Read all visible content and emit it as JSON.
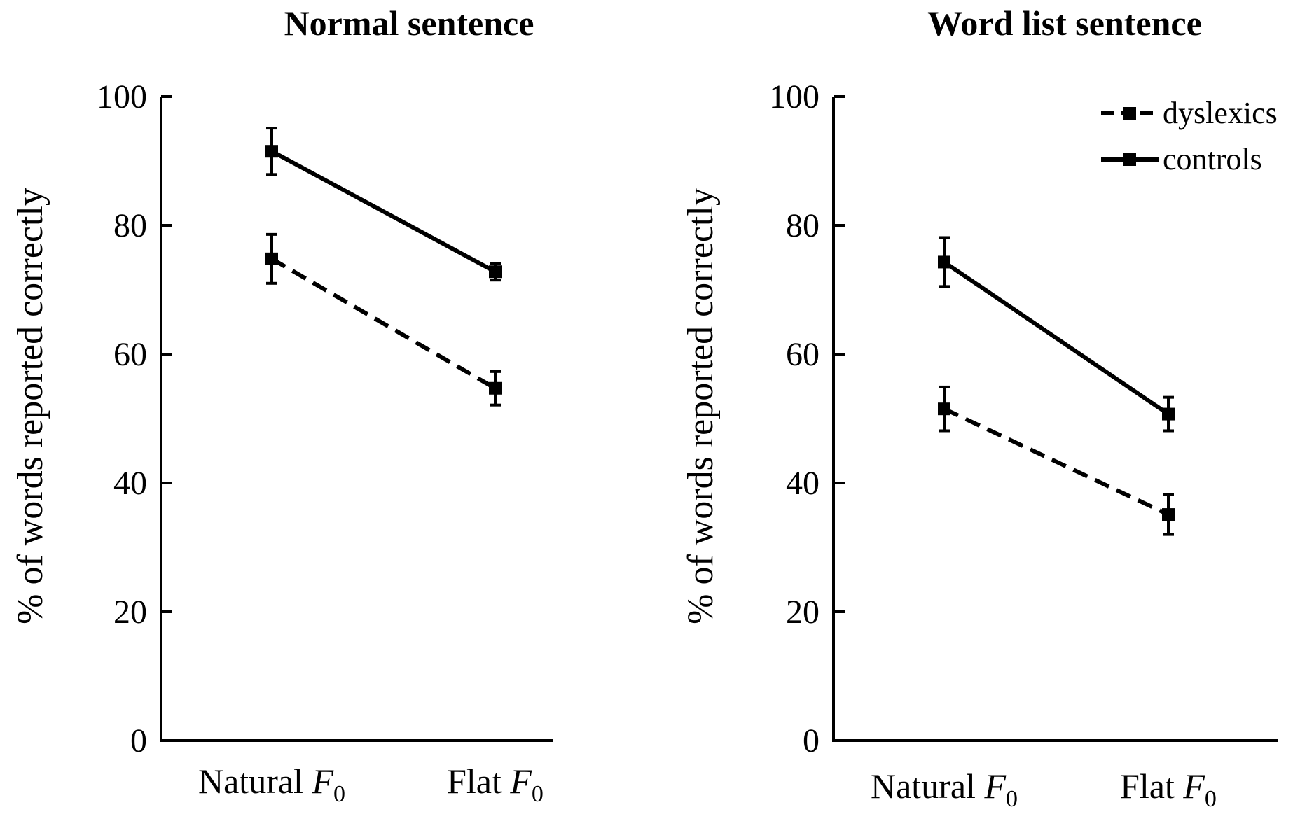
{
  "chart_data": [
    {
      "type": "line",
      "title": "Normal sentence",
      "xlabel": "",
      "ylabel": "% of words reported correctly",
      "categories": [
        "Natural F0",
        "Flat F0"
      ],
      "category_labels": [
        {
          "base": "Natural ",
          "italic": "F",
          "sub": "0"
        },
        {
          "base": "Flat ",
          "italic": "F",
          "sub": "0"
        }
      ],
      "ylim": [
        0,
        100
      ],
      "yticks": [
        0,
        20,
        40,
        60,
        80,
        100
      ],
      "grid": false,
      "series": [
        {
          "name": "controls",
          "style": "solid",
          "values": [
            91.5,
            72.8
          ],
          "errors": [
            3.6,
            1.3
          ]
        },
        {
          "name": "dyslexics",
          "style": "dashed",
          "values": [
            74.8,
            54.7
          ],
          "errors": [
            3.8,
            2.6
          ]
        }
      ]
    },
    {
      "type": "line",
      "title": "Word list sentence",
      "xlabel": "",
      "ylabel": "% of words reported correctly",
      "categories": [
        "Natural F0",
        "Flat F0"
      ],
      "category_labels": [
        {
          "base": "Natural ",
          "italic": "F",
          "sub": "0"
        },
        {
          "base": "Flat ",
          "italic": "F",
          "sub": "0"
        }
      ],
      "ylim": [
        0,
        100
      ],
      "yticks": [
        0,
        20,
        40,
        60,
        80,
        100
      ],
      "grid": false,
      "legend_position": "top-right",
      "series": [
        {
          "name": "controls",
          "style": "solid",
          "values": [
            74.3,
            50.7
          ],
          "errors": [
            3.8,
            2.6
          ]
        },
        {
          "name": "dyslexics",
          "style": "dashed",
          "values": [
            51.5,
            35.1
          ],
          "errors": [
            3.4,
            3.1
          ]
        }
      ]
    }
  ],
  "legend": {
    "position": "top-right",
    "entries": [
      {
        "label": "dyslexics",
        "style": "dashed"
      },
      {
        "label": "controls",
        "style": "solid"
      }
    ]
  },
  "colors": {
    "lines": "#000000",
    "background": "#ffffff"
  }
}
